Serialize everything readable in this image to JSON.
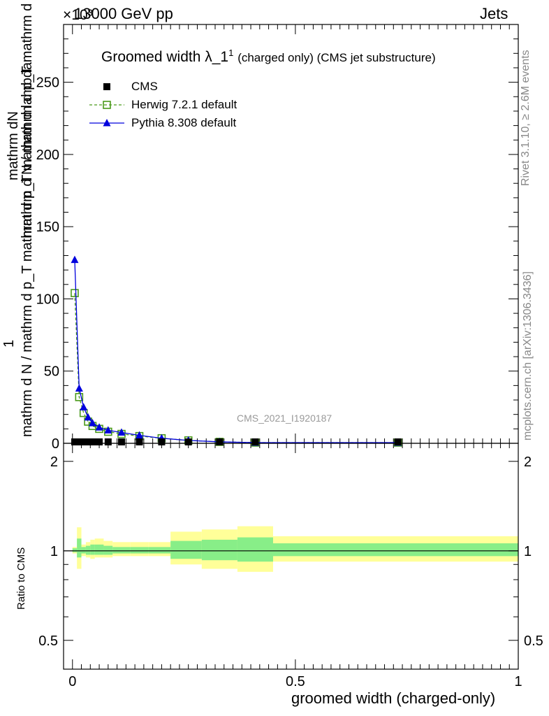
{
  "header": {
    "left": "13000 GeV pp",
    "right": "Jets",
    "exponent": "×10³"
  },
  "side_labels": {
    "rivet": "Rivet 3.1.10, ≥ 2.6M events",
    "mcplots": "mcplots.cern.ch [arXiv:1306.3436]"
  },
  "chart_data": [
    {
      "type": "line",
      "title": "Groomed width λ_1¹ (charged only) (CMS jet substructure)",
      "title_main": "Groomed width",
      "title_lambda": "λ_1",
      "title_sup": "1",
      "title_tail": "(charged only) (CMS jet substructure)",
      "ylabel_top": "mathrm dN",
      "ylabel_numerator": "1",
      "ylabel_main": "mathrm d N / mathrm d p_T mathrm d lambda",
      "ylabel_denominator": "mathrm d N / mathrm d p_T mathrm d p_T mathrm d lambda",
      "yscale_note": "×10³",
      "ylim": [
        0,
        290
      ],
      "xlim": [
        -0.02,
        1.0
      ],
      "yticks": [
        "0",
        "50",
        "100",
        "150",
        "200",
        "250"
      ],
      "watermark": "CMS_2021_I1920187",
      "legend_position": "top-left",
      "series": [
        {
          "name": "CMS",
          "marker": "square-filled",
          "color": "#000000",
          "x": [
            0.005,
            0.015,
            0.025,
            0.035,
            0.045,
            0.06,
            0.08,
            0.11,
            0.15,
            0.2,
            0.26,
            0.33,
            0.41,
            0.73
          ],
          "y": [
            0.3,
            0.3,
            0.3,
            0.3,
            0.3,
            0.3,
            0.3,
            0.3,
            0.3,
            0.3,
            0.2,
            0.1,
            0.05,
            0.02
          ]
        },
        {
          "name": "Herwig 7.2.1 default",
          "marker": "square-open",
          "color": "#4a9a1a",
          "x": [
            0.005,
            0.015,
            0.025,
            0.035,
            0.045,
            0.06,
            0.08,
            0.11,
            0.15,
            0.2,
            0.26,
            0.33,
            0.41,
            0.73
          ],
          "y": [
            104,
            32,
            21,
            15,
            12,
            10,
            8,
            6.5,
            5,
            3.5,
            2,
            1,
            0.5,
            0.1
          ]
        },
        {
          "name": "Pythia 8.308 default",
          "marker": "triangle-filled",
          "color": "#0000dd",
          "x": [
            0.005,
            0.015,
            0.025,
            0.035,
            0.045,
            0.06,
            0.08,
            0.11,
            0.15,
            0.2,
            0.26,
            0.33,
            0.41,
            0.73
          ],
          "y": [
            127,
            38,
            25,
            18,
            14,
            11,
            9,
            7.5,
            5.5,
            3.5,
            2,
            1,
            0.5,
            0.1
          ]
        }
      ]
    },
    {
      "type": "area",
      "ylabel": "Ratio to CMS",
      "xlabel": "groomed width (charged-only)",
      "ylim": [
        0.4,
        2.3
      ],
      "xlim": [
        -0.02,
        1.0
      ],
      "xticks": [
        "0",
        "0.5",
        "1"
      ],
      "yticks": [
        "0.5",
        "1",
        "2"
      ],
      "yticks_right": [
        "0.5",
        "1",
        "2"
      ],
      "bands": {
        "edges": [
          0.0,
          0.01,
          0.02,
          0.03,
          0.04,
          0.05,
          0.07,
          0.09,
          0.13,
          0.17,
          0.22,
          0.29,
          0.37,
          0.45,
          1.0
        ],
        "yellow_lo": [
          0.98,
          0.87,
          0.96,
          0.95,
          0.94,
          0.95,
          0.95,
          0.96,
          0.96,
          0.96,
          0.9,
          0.87,
          0.85,
          0.92
        ],
        "yellow_hi": [
          1.03,
          1.2,
          1.05,
          1.07,
          1.09,
          1.1,
          1.08,
          1.07,
          1.07,
          1.07,
          1.16,
          1.18,
          1.21,
          1.12
        ],
        "green_lo": [
          0.99,
          0.95,
          0.98,
          0.97,
          0.97,
          0.97,
          0.97,
          0.98,
          0.98,
          0.98,
          0.94,
          0.93,
          0.92,
          0.96
        ],
        "green_hi": [
          1.02,
          1.1,
          1.03,
          1.04,
          1.05,
          1.05,
          1.04,
          1.03,
          1.03,
          1.03,
          1.08,
          1.09,
          1.11,
          1.06
        ]
      }
    }
  ]
}
